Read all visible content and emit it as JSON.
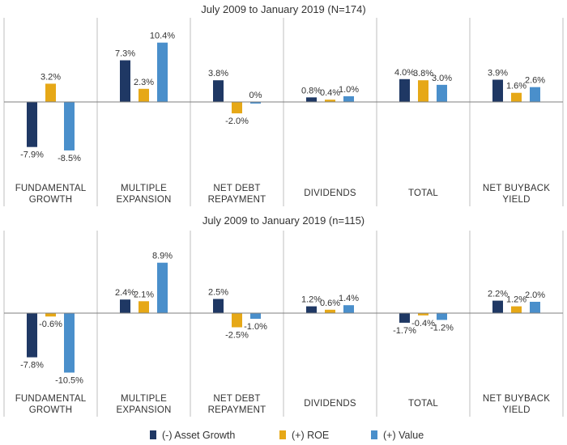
{
  "colors": {
    "asset_growth": "#1f3864",
    "roe": "#e6a817",
    "value": "#4a8fcb",
    "separator": "#bfbfbf",
    "zero_line": "#7f7f7f"
  },
  "chart_data": [
    {
      "type": "bar",
      "title": "July 2009 to January 2019 (N=174)",
      "categories": [
        "FUNDAMENTAL GROWTH",
        "MULTIPLE EXPANSION",
        "NET DEBT REPAYMENT",
        "DIVIDENDS",
        "TOTAL",
        "NET BUYBACK YIELD"
      ],
      "category_lines": [
        [
          "FUNDAMENTAL",
          "GROWTH"
        ],
        [
          "MULTIPLE",
          "EXPANSION"
        ],
        [
          "NET DEBT",
          "REPAYMENT"
        ],
        [
          "DIVIDENDS"
        ],
        [
          "TOTAL"
        ],
        [
          "NET BUYBACK",
          "YIELD"
        ]
      ],
      "series": [
        {
          "name": "(-) Asset Growth",
          "values": [
            -7.9,
            7.3,
            3.8,
            0.8,
            4.0,
            3.9
          ]
        },
        {
          "name": "(+) ROE",
          "values": [
            3.2,
            2.3,
            -2.0,
            0.4,
            3.8,
            1.6
          ]
        },
        {
          "name": "(+) Value",
          "values": [
            -8.5,
            10.4,
            0.0,
            1.0,
            3.0,
            2.6
          ]
        }
      ],
      "labels": [
        [
          "-7.9%",
          "7.3%",
          "3.8%",
          "0.8%",
          "4.0%",
          "3.9%"
        ],
        [
          "3.2%",
          "2.3%",
          "-2.0%",
          "0.4%",
          "3.8%",
          "1.6%"
        ],
        [
          "-8.5%",
          "10.4%",
          "0%",
          "1.0%",
          "3.0%",
          "2.6%"
        ]
      ],
      "unit": "%"
    },
    {
      "type": "bar",
      "title": "July 2009 to January 2019 (n=115)",
      "categories": [
        "FUNDAMENTAL GROWTH",
        "MULTIPLE EXPANSION",
        "NET DEBT REPAYMENT",
        "DIVIDENDS",
        "TOTAL",
        "NET BUYBACK YIELD"
      ],
      "category_lines": [
        [
          "FUNDAMENTAL",
          "GROWTH"
        ],
        [
          "MULTIPLE",
          "EXPANSION"
        ],
        [
          "NET DEBT",
          "REPAYMENT"
        ],
        [
          "DIVIDENDS"
        ],
        [
          "TOTAL"
        ],
        [
          "NET BUYBACK",
          "YIELD"
        ]
      ],
      "series": [
        {
          "name": "(-) Asset Growth",
          "values": [
            -7.8,
            2.4,
            2.5,
            1.2,
            -1.7,
            2.2
          ]
        },
        {
          "name": "(+) ROE",
          "values": [
            -0.6,
            2.1,
            -2.5,
            0.6,
            -0.4,
            1.2
          ]
        },
        {
          "name": "(+) Value",
          "values": [
            -10.5,
            8.9,
            -1.0,
            1.4,
            -1.2,
            2.0
          ]
        }
      ],
      "labels": [
        [
          "-7.8%",
          "2.4%",
          "2.5%",
          "1.2%",
          "-1.7%",
          "2.2%"
        ],
        [
          "-0.6%",
          "2.1%",
          "-2.5%",
          "0.6%",
          "-0.4%",
          "1.2%"
        ],
        [
          "-10.5%",
          "8.9%",
          "-1.0%",
          "1.4%",
          "-1.2%",
          "2.0%"
        ]
      ],
      "unit": "%"
    }
  ],
  "legend": {
    "items": [
      {
        "name": "(-) Asset Growth",
        "color_key": "asset_growth"
      },
      {
        "name": "(+) ROE",
        "color_key": "roe"
      },
      {
        "name": "(+) Value",
        "color_key": "value"
      }
    ],
    "placement": "bottom"
  }
}
